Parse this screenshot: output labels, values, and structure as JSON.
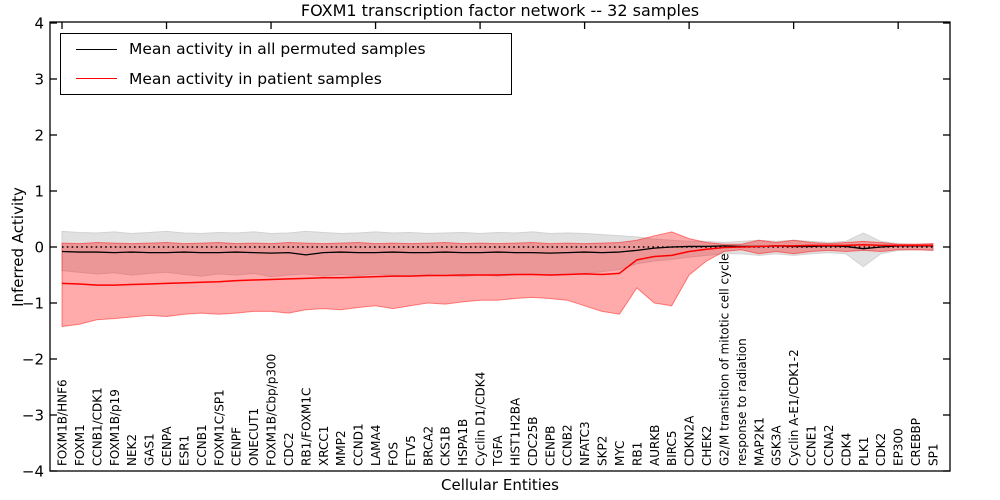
{
  "chart": {
    "title": "FOXM1 transcription factor network -- 32 samples",
    "xlabel": "Cellular Entities",
    "ylabel": "Inferred Activity",
    "legend": [
      {
        "label": "Mean activity in all permuted samples",
        "color": "#000000"
      },
      {
        "label": "Mean activity in patient samples",
        "color": "#ff0000"
      }
    ]
  },
  "chart_data": {
    "type": "line",
    "title": "FOXM1 transcription factor network -- 32 samples",
    "xlabel": "Cellular Entities",
    "ylabel": "Inferred Activity",
    "ylim": [
      -4,
      4
    ],
    "yticks": [
      4,
      3,
      2,
      1,
      0,
      -1,
      -2,
      -3,
      -4
    ],
    "grid": false,
    "legend_position": "upper left",
    "zero_line": {
      "y": 0,
      "style": "dotted",
      "color": "#000000"
    },
    "top_tick_indices": [
      0,
      6,
      12,
      18,
      24,
      30,
      36,
      42,
      48
    ],
    "categories": [
      "FOXM1B/HNF6",
      "FOXM1",
      "CCNB1/CDK1",
      "FOXM1B/p19",
      "NEK2",
      "GAS1",
      "CENPA",
      "ESR1",
      "CCNB1",
      "FOXM1C/SP1",
      "CENPF",
      "ONECUT1",
      "FOXM1B/Cbp/p300",
      "CDC2",
      "RB1/FOXM1C",
      "XRCC1",
      "MMP2",
      "CCND1",
      "LAMA4",
      "FOS",
      "ETV5",
      "BRCA2",
      "CKS1B",
      "HSPA1B",
      "Cyclin D1/CDK4",
      "TGFA",
      "HIST1H2BA",
      "CDC25B",
      "CENPB",
      "CCNB2",
      "NFATC3",
      "SKP2",
      "MYC",
      "RB1",
      "AURKB",
      "BIRC5",
      "CDKN2A",
      "CHEK2",
      "G2/M transition of mitotic cell cycle",
      "response to radiation",
      "MAP2K1",
      "GSK3A",
      "Cyclin A-E1/CDK1-2",
      "CCNE1",
      "CCNA2",
      "CDK4",
      "PLK1",
      "CDK2",
      "EP300",
      "CREBBP",
      "SP1"
    ],
    "series": [
      {
        "name": "Mean activity in all permuted samples",
        "color": "#000000",
        "line_width": 1.3,
        "band_color": "#e1e1e1",
        "band_edge": "#d2d2d2",
        "values": [
          -0.08,
          -0.09,
          -0.09,
          -0.1,
          -0.09,
          -0.1,
          -0.1,
          -0.09,
          -0.1,
          -0.1,
          -0.09,
          -0.1,
          -0.11,
          -0.1,
          -0.14,
          -0.1,
          -0.09,
          -0.1,
          -0.1,
          -0.09,
          -0.1,
          -0.1,
          -0.09,
          -0.1,
          -0.1,
          -0.09,
          -0.1,
          -0.1,
          -0.11,
          -0.1,
          -0.09,
          -0.1,
          -0.09,
          -0.06,
          -0.02,
          0.0,
          0.01,
          0.01,
          0.02,
          0.01,
          0.01,
          0.02,
          0.01,
          0.01,
          0.02,
          0.01,
          -0.03,
          0.0,
          0.02,
          0.02,
          0.02
        ],
        "band_upper": [
          0.28,
          0.26,
          0.25,
          0.27,
          0.24,
          0.26,
          0.28,
          0.25,
          0.24,
          0.26,
          0.25,
          0.27,
          0.24,
          0.25,
          0.28,
          0.26,
          0.24,
          0.25,
          0.27,
          0.25,
          0.26,
          0.24,
          0.25,
          0.26,
          0.24,
          0.26,
          0.25,
          0.27,
          0.24,
          0.25,
          0.24,
          0.22,
          0.2,
          0.18,
          0.14,
          0.12,
          0.1,
          0.1,
          0.08,
          0.1,
          0.12,
          0.1,
          0.12,
          0.1,
          0.08,
          0.1,
          0.25,
          0.1,
          0.06,
          0.05,
          0.06
        ],
        "band_lower": [
          -0.42,
          -0.45,
          -0.48,
          -0.46,
          -0.5,
          -0.47,
          -0.45,
          -0.49,
          -0.52,
          -0.48,
          -0.5,
          -0.47,
          -0.53,
          -0.5,
          -0.48,
          -0.52,
          -0.49,
          -0.51,
          -0.48,
          -0.5,
          -0.52,
          -0.49,
          -0.51,
          -0.53,
          -0.5,
          -0.52,
          -0.5,
          -0.48,
          -0.51,
          -0.49,
          -0.47,
          -0.44,
          -0.4,
          -0.3,
          -0.25,
          -0.22,
          -0.18,
          -0.15,
          -0.12,
          -0.12,
          -0.15,
          -0.12,
          -0.15,
          -0.12,
          -0.1,
          -0.12,
          -0.35,
          -0.12,
          -0.06,
          -0.05,
          -0.06
        ]
      },
      {
        "name": "Mean activity in patient samples",
        "color": "#ff0000",
        "line_width": 1.5,
        "band_color": "rgba(255,0,0,0.33)",
        "band_edge": "rgba(255,0,0,0.45)",
        "values": [
          -0.65,
          -0.66,
          -0.68,
          -0.68,
          -0.67,
          -0.66,
          -0.65,
          -0.64,
          -0.63,
          -0.62,
          -0.6,
          -0.59,
          -0.58,
          -0.57,
          -0.56,
          -0.55,
          -0.55,
          -0.54,
          -0.53,
          -0.52,
          -0.52,
          -0.51,
          -0.51,
          -0.5,
          -0.5,
          -0.5,
          -0.49,
          -0.49,
          -0.5,
          -0.49,
          -0.48,
          -0.49,
          -0.47,
          -0.23,
          -0.17,
          -0.15,
          -0.08,
          -0.04,
          -0.01,
          0.0,
          0.01,
          0.02,
          0.02,
          0.03,
          0.03,
          0.03,
          0.04,
          0.03,
          0.03,
          0.03,
          0.03
        ],
        "band_upper": [
          0.07,
          0.06,
          0.08,
          0.07,
          0.06,
          0.07,
          0.08,
          0.06,
          0.07,
          0.08,
          0.06,
          0.07,
          0.06,
          0.08,
          0.07,
          0.06,
          0.07,
          0.08,
          0.06,
          0.07,
          0.06,
          0.07,
          0.08,
          0.06,
          0.07,
          0.06,
          0.07,
          0.08,
          0.06,
          0.07,
          0.06,
          0.07,
          0.08,
          0.12,
          0.2,
          0.27,
          0.15,
          0.08,
          0.05,
          0.05,
          0.12,
          0.08,
          0.12,
          0.08,
          0.06,
          0.08,
          0.1,
          0.08,
          0.05,
          0.05,
          0.06
        ],
        "band_lower": [
          -1.42,
          -1.38,
          -1.3,
          -1.28,
          -1.25,
          -1.22,
          -1.24,
          -1.2,
          -1.18,
          -1.2,
          -1.18,
          -1.15,
          -1.15,
          -1.18,
          -1.12,
          -1.1,
          -1.12,
          -1.08,
          -1.05,
          -1.1,
          -1.05,
          -1.0,
          -1.02,
          -0.98,
          -0.95,
          -0.95,
          -0.92,
          -0.9,
          -0.92,
          -0.95,
          -1.05,
          -1.15,
          -1.2,
          -0.73,
          -1.0,
          -1.05,
          -0.5,
          -0.25,
          -0.08,
          -0.05,
          -0.12,
          -0.08,
          -0.12,
          -0.08,
          -0.06,
          -0.08,
          -0.06,
          -0.08,
          -0.05,
          -0.05,
          -0.06
        ]
      }
    ]
  }
}
